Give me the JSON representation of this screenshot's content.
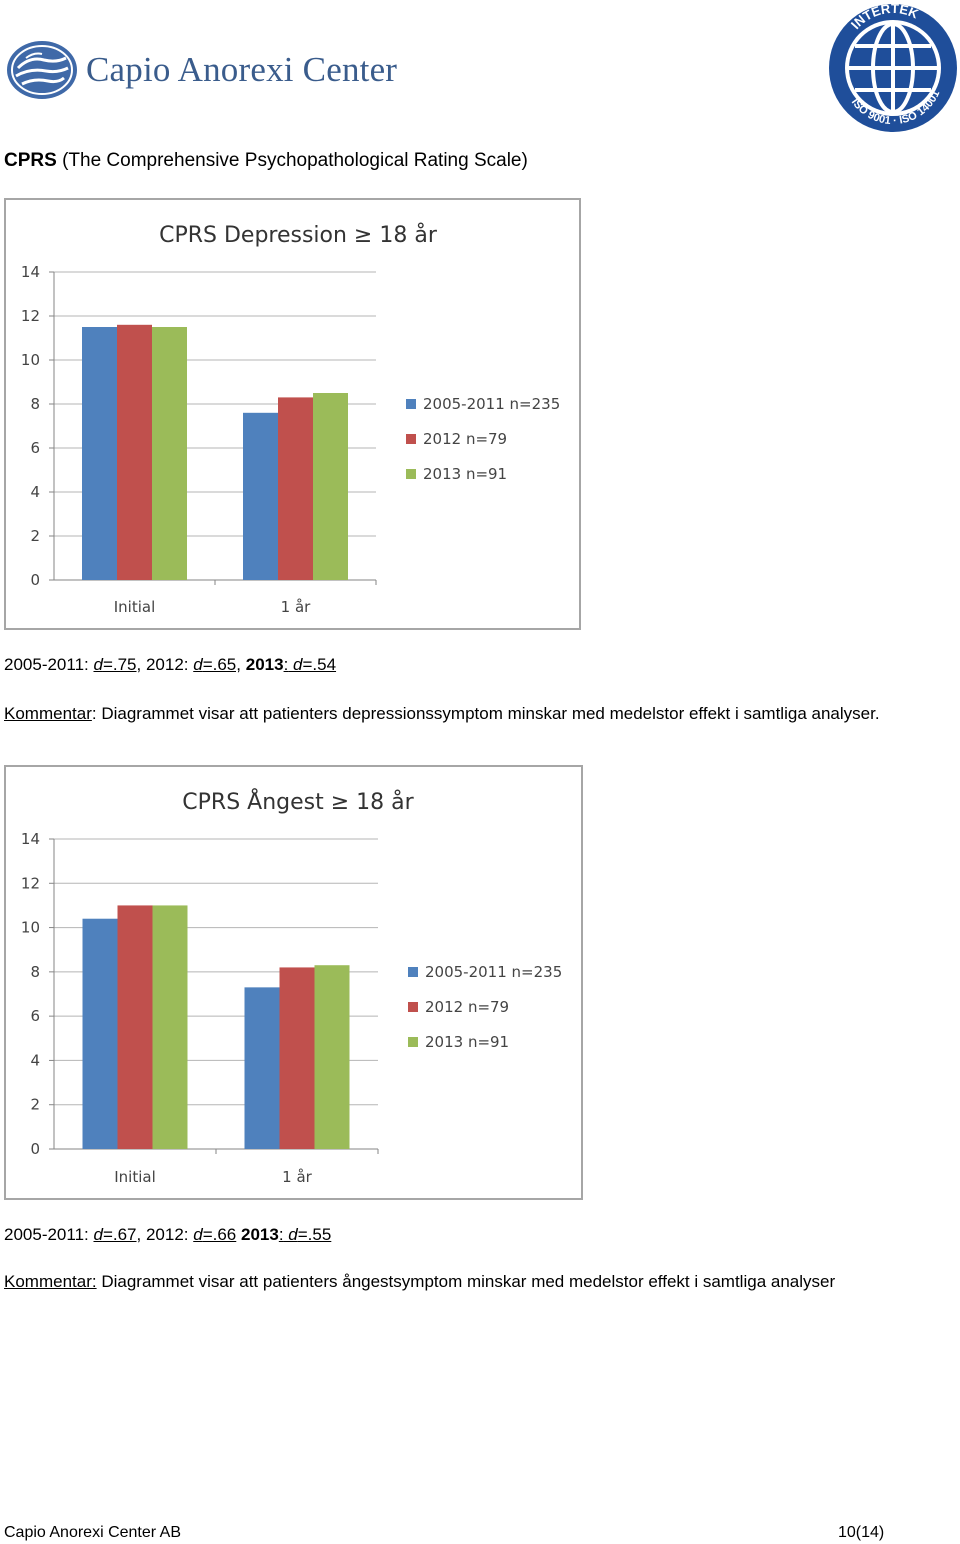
{
  "header": {
    "brand": "Capio Anorexi Center",
    "cert_logo_text": "INTERTEK ISO 9001 · ISO 14001"
  },
  "heading": {
    "abbr": "CPRS",
    "full": " (The Comprehensive Psychopathological Rating Scale)"
  },
  "colors": {
    "series": [
      "#4f81bd",
      "#c0504d",
      "#9bbb59"
    ],
    "brand": "#3a5c8c"
  },
  "chart_data": [
    {
      "type": "bar",
      "title": "CPRS  Depression ≥ 18 år",
      "categories": [
        "Initial",
        "1 år"
      ],
      "series": [
        {
          "name": "2005-2011 n=235",
          "values": [
            11.5,
            7.6
          ]
        },
        {
          "name": "2012 n=79",
          "values": [
            11.6,
            8.3
          ]
        },
        {
          "name": "2013 n=91",
          "values": [
            11.5,
            8.5
          ]
        }
      ],
      "ylim": [
        0,
        14
      ],
      "yticks": [
        "0",
        "2",
        "4",
        "6",
        "8",
        "10",
        "12",
        "14"
      ],
      "grid": true,
      "legend": "right"
    },
    {
      "type": "bar",
      "title": "CPRS Ångest ≥ 18 år",
      "categories": [
        "Initial",
        "1 år"
      ],
      "series": [
        {
          "name": "2005-2011 n=235",
          "values": [
            10.4,
            7.3
          ]
        },
        {
          "name": "2012 n=79",
          "values": [
            11.0,
            8.2
          ]
        },
        {
          "name": "2013 n=91",
          "values": [
            11.0,
            8.3
          ]
        }
      ],
      "ylim": [
        0,
        14
      ],
      "yticks": [
        "0",
        "2",
        "4",
        "6",
        "8",
        "10",
        "12",
        "14"
      ],
      "grid": true,
      "legend": "right"
    }
  ],
  "effects1": {
    "p1": "2005-2011: ",
    "d1": "d",
    "v1": "=.75",
    "p2": ", 2012: ",
    "d2": "d",
    "v2": "=.65,",
    "p3": "2013",
    "p3b": ":",
    "d3": " d",
    "v3": "=.54"
  },
  "comment1": {
    "label": "Kommentar",
    "text": ": Diagrammet visar att patienters depressionssymptom minskar med medelstor effekt i samtliga analyser."
  },
  "effects2": {
    "p1": "2005-2011: ",
    "d1": "d",
    "v1": "=.67",
    "p2": ", 2012: ",
    "d2": "d",
    "v2": "=.66",
    "p3": "2013",
    "p3b": ":",
    "d3": " d",
    "v3": "=.55"
  },
  "comment2": {
    "label": "Kommentar:",
    "text": " Diagrammet visar att patienters ångestsymptom minskar med medelstor effekt i samtliga analyser"
  },
  "footer": {
    "company": "Capio Anorexi Center AB",
    "page": "10(14)"
  }
}
